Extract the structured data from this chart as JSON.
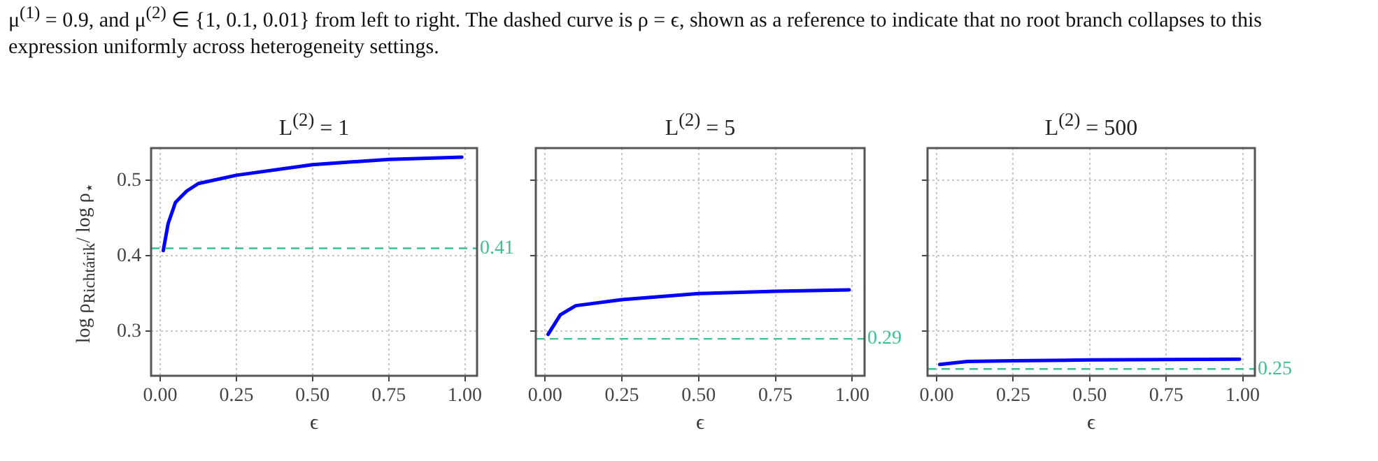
{
  "chart_data": [
    {
      "type": "line",
      "title": "L$^{(2)}$ = 1",
      "xlabel": "ϵ",
      "ylabel": "log ρ$_{Richtárik}$/ log ρ$_{⋆}$",
      "annotations": [
        "μ$^{(1)}$ = 0.9, and μ$^{(2)}$ ∈ {1, 0.1, 0.01} from left to right. The dashed curve is ρ = ϵ, shown as a reference to indicate that no root branch collapses to this expression uniformly across heterogeneity settings."
      ],
      "series": [
        {
          "color": "#0000ff",
          "x": [
            0.01,
            0.026,
            0.05,
            0.087,
            0.125,
            0.25,
            0.5,
            0.75,
            0.99
          ],
          "values": [
            0.407,
            0.443,
            0.471,
            0.486,
            0.496,
            0.507,
            0.521,
            0.528,
            0.531
          ]
        }
      ],
      "xlim": [
        -0.03,
        1.04
      ],
      "xticks": [
        {
          "value": 0,
          "label": "0.00"
        },
        {
          "value": 0.25,
          "label": "0.25"
        },
        {
          "value": 0.5,
          "label": "0.50"
        },
        {
          "value": 0.75,
          "label": "0.75"
        },
        {
          "value": 1,
          "label": "1.00"
        }
      ],
      "ylim": [
        0.241,
        0.543
      ],
      "yticks": [
        0.3,
        0.4,
        0.5
      ],
      "ref_lines": [
        {
          "axis": "y",
          "value": 0.41,
          "label": "0.41",
          "color": "#3dbf8f",
          "line_style": "dashed"
        }
      ],
      "grid": true,
      "marker": "none",
      "line_style": "solid"
    },
    {
      "type": "line",
      "title": "L$^{(2)}$ = 5",
      "xlabel": "ϵ",
      "series": [
        {
          "color": "#0000ff",
          "x": [
            0.01,
            0.05,
            0.1,
            0.25,
            0.5,
            0.75,
            0.99
          ],
          "values": [
            0.296,
            0.322,
            0.334,
            0.342,
            0.35,
            0.353,
            0.355
          ]
        }
      ],
      "xlim": [
        -0.03,
        1.04
      ],
      "xticks": [
        {
          "value": 0,
          "label": "0.00"
        },
        {
          "value": 0.25,
          "label": "0.25"
        },
        {
          "value": 0.5,
          "label": "0.50"
        },
        {
          "value": 0.75,
          "label": "0.75"
        },
        {
          "value": 1,
          "label": "1.00"
        }
      ],
      "ylim": [
        0.241,
        0.543
      ],
      "yticks": [
        0.3,
        0.4,
        0.5
      ],
      "tick_labels": "x",
      "ref_lines": [
        {
          "axis": "y",
          "value": 0.29,
          "label": "0.29",
          "color": "#3dbf8f",
          "line_style": "dashed"
        }
      ],
      "grid": true,
      "marker": "none",
      "line_style": "solid"
    },
    {
      "type": "line",
      "title": "L$^{(2)}$ = 500",
      "xlabel": "ϵ",
      "series": [
        {
          "color": "#0000ff",
          "x": [
            0.01,
            0.1,
            0.25,
            0.5,
            0.99
          ],
          "values": [
            0.256,
            0.26,
            0.261,
            0.262,
            0.263
          ]
        }
      ],
      "xlim": [
        -0.03,
        1.04
      ],
      "xticks": [
        {
          "value": 0,
          "label": "0.00"
        },
        {
          "value": 0.25,
          "label": "0.25"
        },
        {
          "value": 0.5,
          "label": "0.50"
        },
        {
          "value": 0.75,
          "label": "0.75"
        },
        {
          "value": 1,
          "label": "1.00"
        }
      ],
      "ylim": [
        0.241,
        0.543
      ],
      "yticks": [
        0.3,
        0.4,
        0.5
      ],
      "tick_labels": "x",
      "ref_lines": [
        {
          "axis": "y",
          "value": 0.25,
          "label": "0.25",
          "color": "#3dbf8f",
          "line_style": "dashed"
        }
      ],
      "grid": true,
      "marker": "none",
      "line_style": "solid"
    }
  ]
}
